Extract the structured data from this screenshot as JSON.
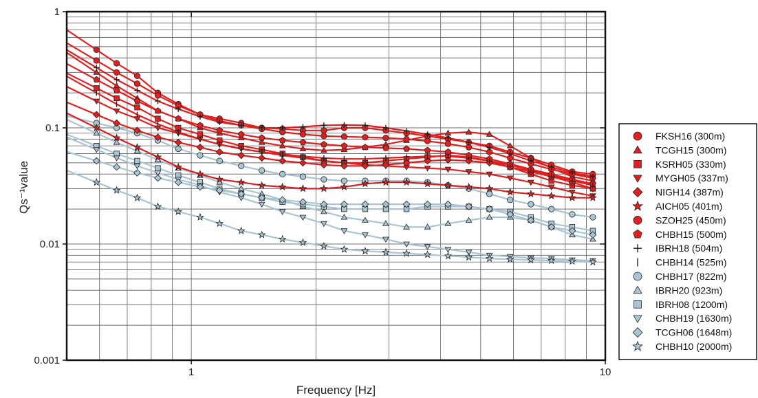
{
  "chart_data": {
    "type": "line",
    "xlabel": "Frequency [Hz]",
    "ylabel": "Qs⁻¹value",
    "x_scale": "log",
    "y_scale": "log",
    "xlim": [
      0.5,
      10
    ],
    "ylim": [
      0.001,
      1
    ],
    "x_tick_labels": [
      {
        "value": 1,
        "label": "1"
      },
      {
        "value": 10,
        "label": "10"
      }
    ],
    "y_tick_labels": [
      {
        "value": 1,
        "label": "1"
      },
      {
        "value": 0.1,
        "label": "0.1"
      },
      {
        "value": 0.01,
        "label": "0.01"
      },
      {
        "value": 0.001,
        "label": "0.001"
      }
    ],
    "grid": true,
    "legend_position": "right",
    "x": [
      0.59,
      0.66,
      0.74,
      0.83,
      0.93,
      1.05,
      1.17,
      1.32,
      1.48,
      1.66,
      1.86,
      2.09,
      2.34,
      2.63,
      2.95,
      3.31,
      3.72,
      4.17,
      4.68,
      5.25,
      5.89,
      6.61,
      7.41,
      8.32,
      9.33
    ],
    "series": [
      {
        "name": "FKSH16 (300m)",
        "color": "#e02020",
        "marker": "circle",
        "values": [
          0.47,
          0.36,
          0.28,
          0.2,
          0.16,
          0.13,
          0.12,
          0.11,
          0.1,
          0.098,
          0.095,
          0.095,
          0.1,
          0.1,
          0.095,
          0.09,
          0.085,
          0.08,
          0.075,
          0.07,
          0.062,
          0.055,
          0.048,
          0.042,
          0.04
        ]
      },
      {
        "name": "TCGH15 (300m)",
        "color": "#e02020",
        "marker": "triangle-up",
        "values": [
          0.3,
          0.23,
          0.18,
          0.14,
          0.12,
          0.1,
          0.09,
          0.082,
          0.075,
          0.07,
          0.066,
          0.064,
          0.065,
          0.068,
          0.072,
          0.078,
          0.085,
          0.09,
          0.092,
          0.088,
          0.07,
          0.055,
          0.045,
          0.038,
          0.035
        ]
      },
      {
        "name": "KSRH05 (330m)",
        "color": "#e02020",
        "marker": "square",
        "values": [
          0.22,
          0.18,
          0.15,
          0.12,
          0.1,
          0.088,
          0.078,
          0.07,
          0.065,
          0.06,
          0.056,
          0.052,
          0.05,
          0.05,
          0.052,
          0.054,
          0.056,
          0.058,
          0.056,
          0.052,
          0.046,
          0.04,
          0.035,
          0.032,
          0.03
        ]
      },
      {
        "name": "MYGH05 (337m)",
        "color": "#e02020",
        "marker": "triangle-down",
        "values": [
          0.17,
          0.14,
          0.12,
          0.1,
          0.09,
          0.08,
          0.072,
          0.066,
          0.062,
          0.058,
          0.055,
          0.052,
          0.05,
          0.048,
          0.047,
          0.046,
          0.045,
          0.044,
          0.042,
          0.04,
          0.037,
          0.034,
          0.031,
          0.028,
          0.026
        ]
      },
      {
        "name": "NIGH14 (387m)",
        "color": "#e02020",
        "marker": "diamond",
        "values": [
          0.13,
          0.11,
          0.095,
          0.083,
          0.075,
          0.068,
          0.062,
          0.058,
          0.055,
          0.052,
          0.05,
          0.048,
          0.047,
          0.047,
          0.048,
          0.05,
          0.052,
          0.053,
          0.052,
          0.05,
          0.046,
          0.042,
          0.038,
          0.034,
          0.03
        ]
      },
      {
        "name": "AICH05 (401m)",
        "color": "#e02020",
        "marker": "star",
        "values": [
          0.1,
          0.082,
          0.068,
          0.056,
          0.046,
          0.04,
          0.036,
          0.034,
          0.032,
          0.031,
          0.03,
          0.03,
          0.031,
          0.033,
          0.034,
          0.034,
          0.033,
          0.032,
          0.031,
          0.03,
          0.028,
          0.027,
          0.026,
          0.025,
          0.025
        ]
      },
      {
        "name": "SZOH25 (450m)",
        "color": "#e02020",
        "marker": "circle",
        "values": [
          0.38,
          0.3,
          0.24,
          0.19,
          0.155,
          0.13,
          0.115,
          0.105,
          0.098,
          0.092,
          0.088,
          0.085,
          0.084,
          0.083,
          0.082,
          0.08,
          0.077,
          0.073,
          0.068,
          0.062,
          0.055,
          0.049,
          0.044,
          0.04,
          0.037
        ]
      },
      {
        "name": "CHBH15 (500m)",
        "color": "#e02020",
        "marker": "pentagon",
        "values": [
          0.26,
          0.21,
          0.17,
          0.14,
          0.12,
          0.105,
          0.095,
          0.088,
          0.082,
          0.078,
          0.075,
          0.072,
          0.07,
          0.068,
          0.067,
          0.066,
          0.064,
          0.062,
          0.058,
          0.054,
          0.049,
          0.044,
          0.04,
          0.036,
          0.033
        ]
      },
      {
        "name": "IBRH18 (504m)",
        "color": "#e02020",
        "marker": "plus",
        "values": [
          0.33,
          0.26,
          0.21,
          0.17,
          0.145,
          0.125,
          0.112,
          0.105,
          0.1,
          0.1,
          0.102,
          0.105,
          0.106,
          0.105,
          0.1,
          0.094,
          0.088,
          0.082,
          0.075,
          0.068,
          0.06,
          0.052,
          0.046,
          0.041,
          0.038
        ]
      },
      {
        "name": "CHBH14 (525m)",
        "color": "#e02020",
        "marker": "vline",
        "values": [
          0.2,
          0.16,
          0.13,
          0.108,
          0.092,
          0.08,
          0.072,
          0.066,
          0.062,
          0.059,
          0.057,
          0.055,
          0.054,
          0.054,
          0.055,
          0.056,
          0.057,
          0.057,
          0.055,
          0.052,
          0.048,
          0.043,
          0.039,
          0.035,
          0.032
        ]
      },
      {
        "name": "CHBH17 (822m)",
        "color": "#a9c4d3",
        "marker": "circle",
        "values": [
          0.11,
          0.1,
          0.09,
          0.078,
          0.066,
          0.058,
          0.052,
          0.047,
          0.043,
          0.04,
          0.038,
          0.036,
          0.035,
          0.035,
          0.035,
          0.035,
          0.034,
          0.032,
          0.03,
          0.027,
          0.024,
          0.022,
          0.02,
          0.018,
          0.017
        ]
      },
      {
        "name": "IBRH20 (923m)",
        "color": "#a9c4d3",
        "marker": "triangle-up",
        "values": [
          0.09,
          0.075,
          0.063,
          0.053,
          0.045,
          0.039,
          0.034,
          0.03,
          0.027,
          0.024,
          0.021,
          0.019,
          0.017,
          0.016,
          0.015,
          0.014,
          0.014,
          0.015,
          0.016,
          0.017,
          0.017,
          0.016,
          0.014,
          0.012,
          0.011
        ]
      },
      {
        "name": "IBRH08 (1200m)",
        "color": "#a9c4d3",
        "marker": "square",
        "values": [
          0.07,
          0.06,
          0.052,
          0.045,
          0.039,
          0.034,
          0.03,
          0.027,
          0.025,
          0.023,
          0.022,
          0.021,
          0.02,
          0.02,
          0.02,
          0.02,
          0.021,
          0.021,
          0.021,
          0.02,
          0.019,
          0.017,
          0.015,
          0.014,
          0.013
        ]
      },
      {
        "name": "CHBH19 (1630m)",
        "color": "#a9c4d3",
        "marker": "triangle-down",
        "values": [
          0.065,
          0.055,
          0.047,
          0.041,
          0.036,
          0.032,
          0.028,
          0.025,
          0.022,
          0.019,
          0.017,
          0.015,
          0.013,
          0.012,
          0.011,
          0.01,
          0.0095,
          0.009,
          0.0085,
          0.008,
          0.0078,
          0.0076,
          0.0075,
          0.0073,
          0.0072
        ]
      },
      {
        "name": "TCGH06 (1648m)",
        "color": "#a9c4d3",
        "marker": "diamond",
        "values": [
          0.052,
          0.046,
          0.041,
          0.037,
          0.034,
          0.031,
          0.029,
          0.027,
          0.025,
          0.024,
          0.023,
          0.022,
          0.022,
          0.022,
          0.022,
          0.022,
          0.022,
          0.022,
          0.021,
          0.02,
          0.018,
          0.016,
          0.014,
          0.013,
          0.012
        ]
      },
      {
        "name": "CHBH10 (2000m)",
        "color": "#a9c4d3",
        "marker": "star",
        "values": [
          0.034,
          0.029,
          0.025,
          0.021,
          0.019,
          0.017,
          0.015,
          0.013,
          0.012,
          0.011,
          0.0103,
          0.0096,
          0.009,
          0.0087,
          0.0085,
          0.0083,
          0.0081,
          0.0079,
          0.0077,
          0.0075,
          0.0074,
          0.0073,
          0.0072,
          0.0071,
          0.007
        ]
      }
    ]
  }
}
